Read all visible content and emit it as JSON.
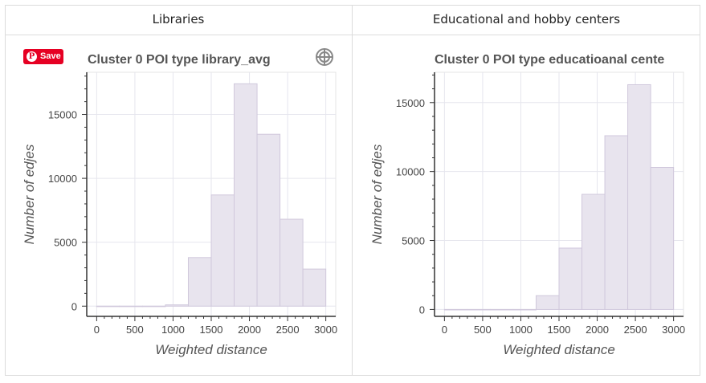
{
  "tabs": [
    {
      "label": "Libraries"
    },
    {
      "label": "Educational and hobby centers"
    }
  ],
  "save_button": {
    "label": "Save",
    "icon": "pinterest-icon",
    "color": "#e60023"
  },
  "toolbar_icon": "crosshair-icon",
  "chart_data": [
    {
      "type": "bar",
      "title": "Cluster 0 POI type library_avg",
      "xlabel": "Weighted distance",
      "ylabel": "Number of edjes",
      "bin_edges": [
        0,
        300,
        600,
        900,
        1200,
        1500,
        1800,
        2100,
        2400,
        2700,
        3000
      ],
      "values": [
        0,
        0,
        0,
        100,
        3800,
        8700,
        17400,
        13450,
        6800,
        2900
      ],
      "xlim": [
        -130,
        3130
      ],
      "ylim": [
        -800,
        18300
      ],
      "xticks": [
        0,
        500,
        1000,
        1500,
        2000,
        2500,
        3000
      ],
      "yticks": [
        0,
        5000,
        10000,
        15000
      ],
      "grid": true,
      "bar_color": "#e8e4ee",
      "bar_edge": "#d0c8dc"
    },
    {
      "type": "bar",
      "title": "Cluster 0 POI type educatioanal cente",
      "xlabel": "Weighted distance",
      "ylabel": "Number of edjes",
      "bin_edges": [
        0,
        300,
        600,
        900,
        1200,
        1500,
        1800,
        2100,
        2400,
        2700,
        3000
      ],
      "values": [
        0,
        0,
        0,
        0,
        1000,
        4450,
        8350,
        12600,
        16300,
        10300
      ],
      "xlim": [
        -130,
        3130
      ],
      "ylim": [
        -500,
        17200
      ],
      "xticks": [
        0,
        500,
        1000,
        1500,
        2000,
        2500,
        3000
      ],
      "yticks": [
        0,
        5000,
        10000,
        15000
      ],
      "grid": true,
      "bar_color": "#e8e4ee",
      "bar_edge": "#d0c8dc"
    }
  ]
}
